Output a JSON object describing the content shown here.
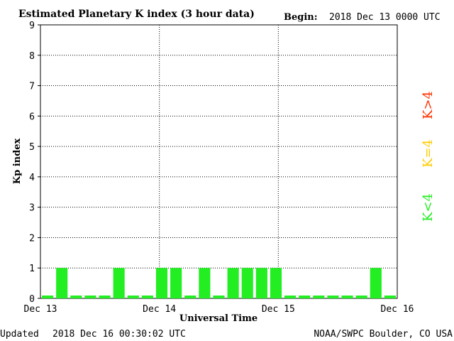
{
  "header": {
    "title": "Estimated Planetary K index (3 hour data)",
    "begin_label": "Begin:",
    "begin_value": "2018 Dec 13 0000 UTC"
  },
  "footer": {
    "updated_label": "Updated",
    "updated_value": "2018 Dec 16 00:30:02 UTC",
    "credit": "NOAA/SWPC Boulder, CO USA"
  },
  "legend": [
    {
      "label": "K>4",
      "color": "#ff3300"
    },
    {
      "label": "K=4",
      "color": "#ffcc00"
    },
    {
      "label": "K<4",
      "color": "#22ee22"
    }
  ],
  "chart_data": {
    "type": "bar",
    "title": "Estimated Planetary K index (3 hour data)",
    "xlabel": "Universal Time",
    "ylabel": "Kp index",
    "ylim": [
      0,
      9
    ],
    "yticks": [
      "0",
      "1",
      "2",
      "3",
      "4",
      "5",
      "6",
      "7",
      "8",
      "9"
    ],
    "xticks": [
      "Dec 13",
      "Dec 14",
      "Dec 15",
      "Dec 16"
    ],
    "grid": true,
    "bar_color": "#22ee22",
    "values": [
      0,
      1,
      0,
      0,
      0,
      1,
      0,
      0,
      1,
      1,
      0,
      1,
      0,
      1,
      1,
      1,
      1,
      0,
      0,
      0,
      0,
      0,
      0,
      1,
      0
    ]
  }
}
